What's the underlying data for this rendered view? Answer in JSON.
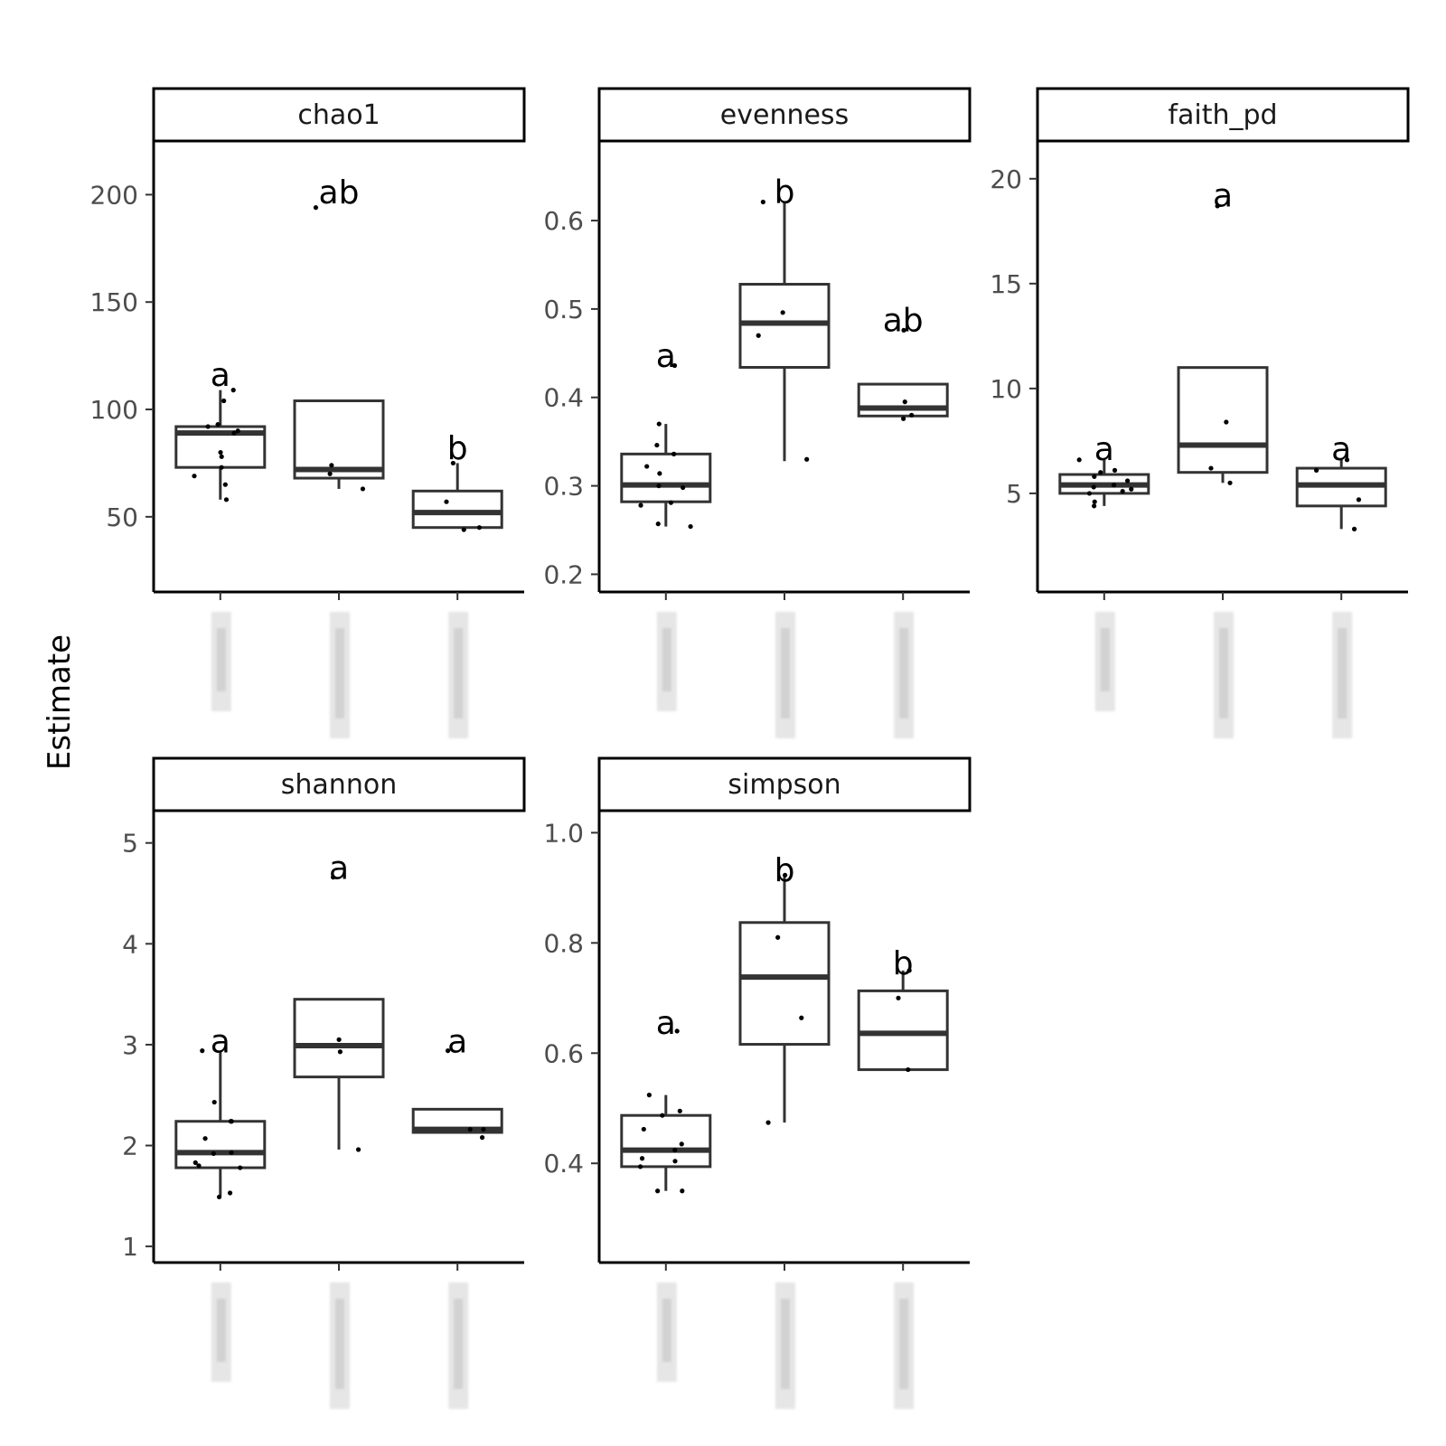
{
  "chart_data": {
    "type": "boxplot",
    "ylabel": "Estimate",
    "xlabel": "",
    "groups": [
      "1",
      "2",
      "3"
    ],
    "facets": [
      {
        "name": "chao1",
        "ylim": [
          15,
          225
        ],
        "yticks": [
          50,
          100,
          150,
          200
        ],
        "boxes": [
          {
            "group": "1",
            "q1": 73,
            "median": 89,
            "q3": 92,
            "whisker_low": 58,
            "whisker_high": 109
          },
          {
            "group": "2",
            "q1": 68,
            "median": 72,
            "q3": 104,
            "whisker_low": 63,
            "whisker_high": 104
          },
          {
            "group": "3",
            "q1": 45,
            "median": 52,
            "q3": 62,
            "whisker_low": 45,
            "whisker_high": 75
          }
        ],
        "points": [
          {
            "group": "1",
            "values": [
              109,
              104,
              93,
              92,
              90,
              89,
              80,
              78,
              73,
              69,
              65,
              58
            ]
          },
          {
            "group": "2",
            "values": [
              194,
              74,
              70,
              63
            ]
          },
          {
            "group": "3",
            "values": [
              75,
              57,
              45,
              44
            ]
          }
        ],
        "letters": [
          {
            "group": "1",
            "label": "a",
            "y": 116
          },
          {
            "group": "2",
            "label": "ab",
            "y": 201
          },
          {
            "group": "3",
            "label": "b",
            "y": 82
          }
        ]
      },
      {
        "name": "evenness",
        "ylim": [
          0.18,
          0.69
        ],
        "yticks": [
          0.2,
          0.3,
          0.4,
          0.5,
          0.6
        ],
        "boxes": [
          {
            "group": "1",
            "q1": 0.282,
            "median": 0.301,
            "q3": 0.336,
            "whisker_low": 0.254,
            "whisker_high": 0.37
          },
          {
            "group": "2",
            "q1": 0.434,
            "median": 0.484,
            "q3": 0.528,
            "whisker_low": 0.328,
            "whisker_high": 0.621
          },
          {
            "group": "3",
            "q1": 0.379,
            "median": 0.388,
            "q3": 0.415,
            "whisker_low": 0.379,
            "whisker_high": 0.415
          }
        ],
        "points": [
          {
            "group": "1",
            "values": [
              0.436,
              0.37,
              0.346,
              0.336,
              0.322,
              0.314,
              0.3,
              0.298,
              0.281,
              0.278,
              0.257,
              0.254
            ]
          },
          {
            "group": "2",
            "values": [
              0.621,
              0.496,
              0.47,
              0.33
            ]
          },
          {
            "group": "3",
            "values": [
              0.476,
              0.395,
              0.38,
              0.376
            ]
          }
        ],
        "letters": [
          {
            "group": "1",
            "label": "a",
            "y": 0.447
          },
          {
            "group": "2",
            "label": "b",
            "y": 0.632
          },
          {
            "group": "3",
            "label": "ab",
            "y": 0.487
          }
        ]
      },
      {
        "name": "faith_pd",
        "ylim": [
          0.3,
          21.8
        ],
        "yticks": [
          5,
          10,
          15,
          20
        ],
        "boxes": [
          {
            "group": "1",
            "q1": 5.0,
            "median": 5.4,
            "q3": 5.9,
            "whisker_low": 4.4,
            "whisker_high": 6.6
          },
          {
            "group": "2",
            "q1": 6.0,
            "median": 7.3,
            "q3": 11.0,
            "whisker_low": 5.5,
            "whisker_high": 11.0
          },
          {
            "group": "3",
            "q1": 4.4,
            "median": 5.4,
            "q3": 6.2,
            "whisker_low": 3.3,
            "whisker_high": 6.6
          }
        ],
        "points": [
          {
            "group": "1",
            "values": [
              6.6,
              6.1,
              6.0,
              5.8,
              5.6,
              5.4,
              5.3,
              5.2,
              5.1,
              5.0,
              4.6,
              4.4
            ]
          },
          {
            "group": "2",
            "values": [
              18.7,
              8.4,
              6.2,
              5.5
            ]
          },
          {
            "group": "3",
            "values": [
              6.6,
              6.1,
              4.7,
              3.3
            ]
          }
        ],
        "letters": [
          {
            "group": "1",
            "label": "a",
            "y": 7.1
          },
          {
            "group": "2",
            "label": "a",
            "y": 19.2
          },
          {
            "group": "3",
            "label": "a",
            "y": 7.1
          }
        ]
      },
      {
        "name": "shannon",
        "ylim": [
          0.84,
          5.32
        ],
        "yticks": [
          1,
          2,
          3,
          4,
          5
        ],
        "boxes": [
          {
            "group": "1",
            "q1": 1.78,
            "median": 1.93,
            "q3": 2.24,
            "whisker_low": 1.5,
            "whisker_high": 2.94
          },
          {
            "group": "2",
            "q1": 2.68,
            "median": 2.99,
            "q3": 3.45,
            "whisker_low": 1.96,
            "whisker_high": 3.45
          },
          {
            "group": "3",
            "q1": 2.13,
            "median": 2.16,
            "q3": 2.36,
            "whisker_low": 2.13,
            "whisker_high": 2.36
          }
        ],
        "points": [
          {
            "group": "1",
            "values": [
              2.94,
              2.43,
              2.24,
              2.24,
              2.07,
              1.93,
              1.92,
              1.83,
              1.8,
              1.78,
              1.53,
              1.49
            ]
          },
          {
            "group": "2",
            "values": [
              4.66,
              3.05,
              2.93,
              1.96
            ]
          },
          {
            "group": "3",
            "values": [
              2.94,
              2.16,
              2.16,
              2.08
            ]
          }
        ],
        "letters": [
          {
            "group": "1",
            "label": "a",
            "y": 3.03
          },
          {
            "group": "2",
            "label": "a",
            "y": 4.75
          },
          {
            "group": "3",
            "label": "a",
            "y": 3.03
          }
        ]
      },
      {
        "name": "simpson",
        "ylim": [
          0.22,
          1.04
        ],
        "yticks": [
          0.4,
          0.6,
          0.8,
          1.0
        ],
        "boxes": [
          {
            "group": "1",
            "q1": 0.394,
            "median": 0.424,
            "q3": 0.487,
            "whisker_low": 0.35,
            "whisker_high": 0.524
          },
          {
            "group": "2",
            "q1": 0.616,
            "median": 0.738,
            "q3": 0.837,
            "whisker_low": 0.474,
            "whisker_high": 0.923
          },
          {
            "group": "3",
            "q1": 0.57,
            "median": 0.636,
            "q3": 0.713,
            "whisker_low": 0.57,
            "whisker_high": 0.75
          }
        ],
        "points": [
          {
            "group": "1",
            "values": [
              0.64,
              0.524,
              0.495,
              0.487,
              0.462,
              0.435,
              0.424,
              0.409,
              0.404,
              0.394,
              0.35,
              0.35
            ]
          },
          {
            "group": "2",
            "values": [
              0.923,
              0.81,
              0.664,
              0.474
            ]
          },
          {
            "group": "3",
            "values": [
              0.75,
              0.7,
              0.57
            ]
          }
        ],
        "letters": [
          {
            "group": "1",
            "label": "a",
            "y": 0.655
          },
          {
            "group": "2",
            "label": "b",
            "y": 0.932
          },
          {
            "group": "3",
            "label": "b",
            "y": 0.763
          }
        ]
      }
    ]
  }
}
